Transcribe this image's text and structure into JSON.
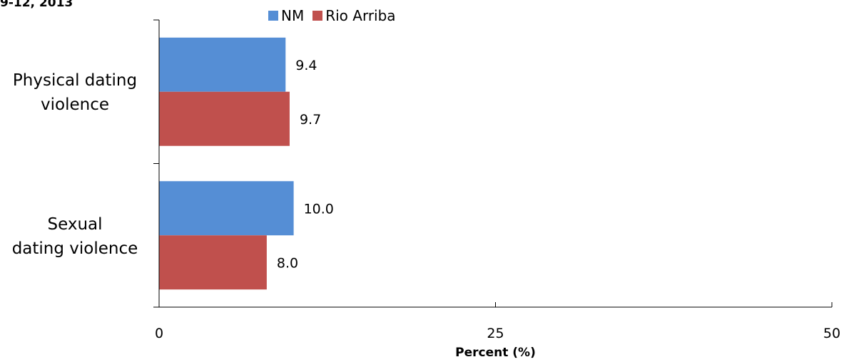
{
  "title_fragment": "9-12, 2013",
  "colors": {
    "NM": "#558ED5",
    "Rio Arriba": "#C0504D",
    "axis": "#000000"
  },
  "chart_data": {
    "type": "bar",
    "orientation": "horizontal",
    "title": "9-12, 2013",
    "categories": [
      [
        "Physical dating",
        "violence"
      ],
      [
        "Sexual",
        "dating violence"
      ]
    ],
    "series": [
      {
        "name": "NM",
        "values": [
          9.4,
          10.0
        ],
        "labels": [
          "9.4",
          "10.0"
        ]
      },
      {
        "name": "Rio Arriba",
        "values": [
          9.7,
          8.0
        ],
        "labels": [
          "9.7",
          "8.0"
        ]
      }
    ],
    "xlabel": "Percent (%)",
    "ylabel": "",
    "xlim": [
      0,
      50
    ],
    "ticks": [
      0,
      25,
      50
    ],
    "tick_labels": [
      "0",
      "25",
      "50"
    ],
    "legend_position": "top",
    "grid": false
  }
}
